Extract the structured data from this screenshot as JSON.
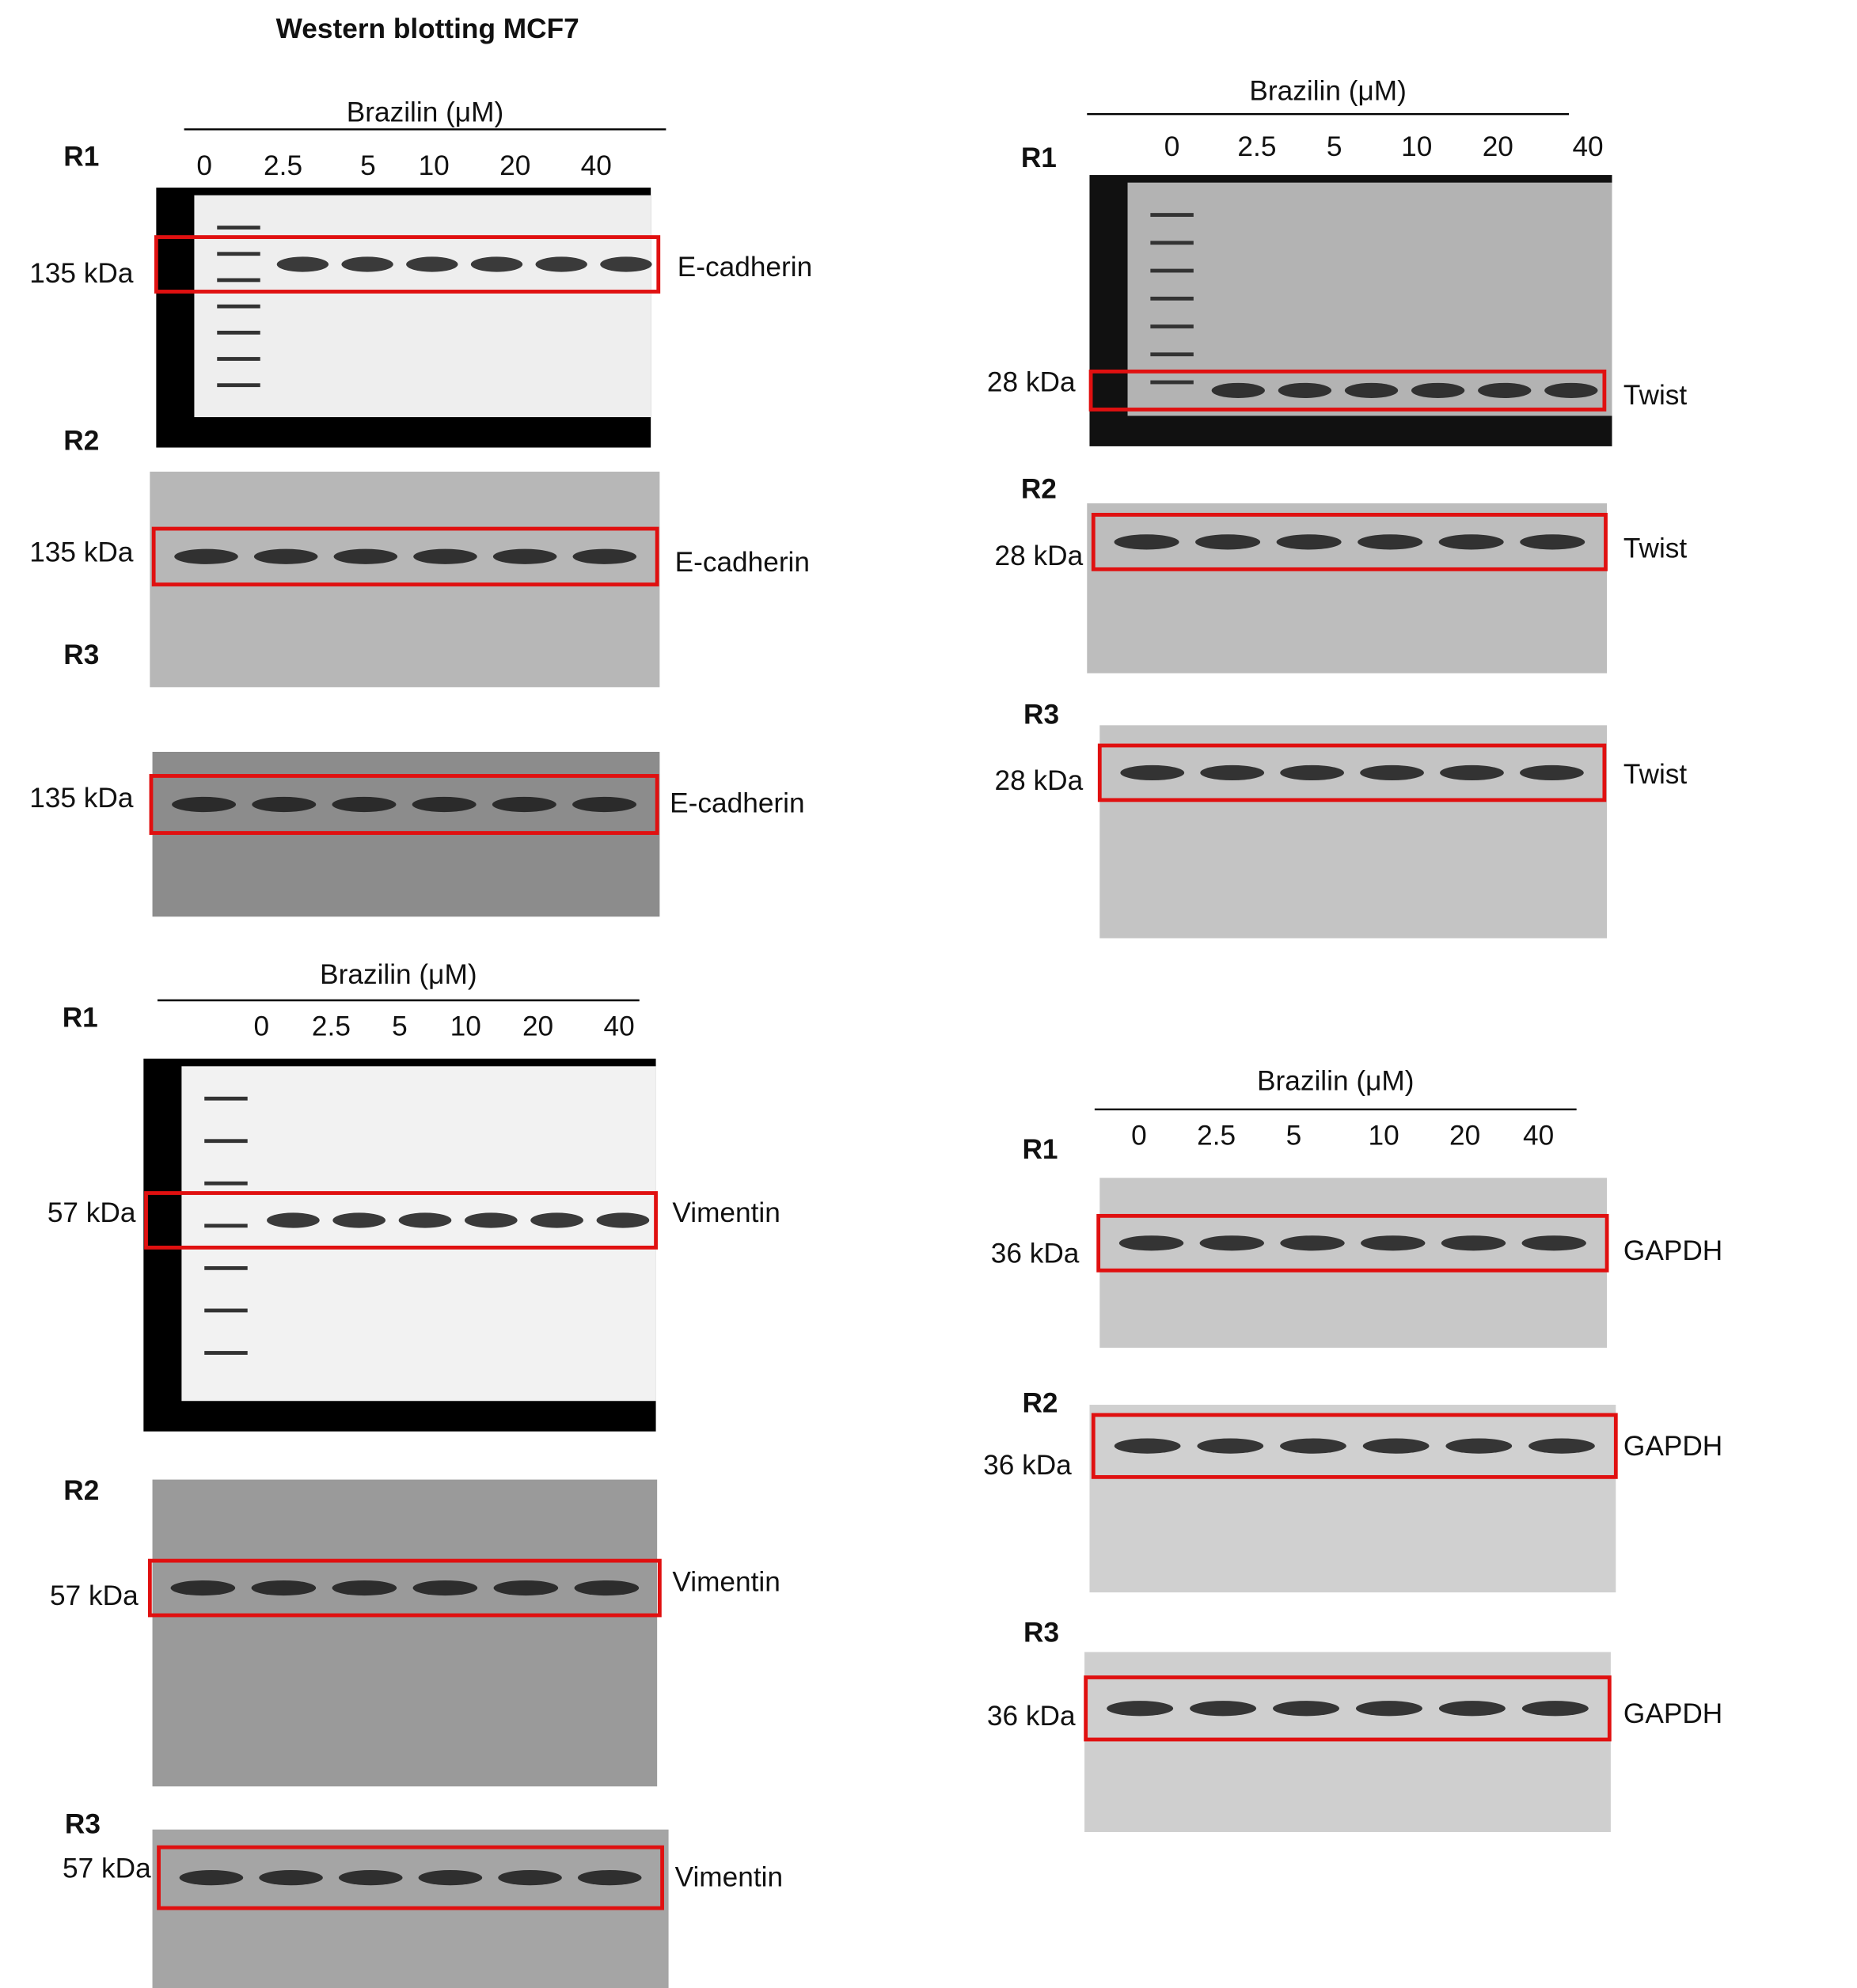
{
  "title": "Western blotting MCF7",
  "panels": [
    {
      "treatment": "Brazilin (μM)",
      "lanes": [
        "0",
        "2.5",
        "5",
        "10",
        "20",
        "40"
      ],
      "blots": [
        {
          "replicate": "R1",
          "marker": "135 kDa",
          "protein": "E-cadherin"
        },
        {
          "replicate": "R2",
          "marker": "135 kDa",
          "protein": "E-cadherin"
        },
        {
          "replicate": "R3",
          "marker": "135 kDa",
          "protein": "E-cadherin"
        }
      ]
    },
    {
      "treatment": "Brazilin (μM)",
      "lanes": [
        "0",
        "2.5",
        "5",
        "10",
        "20",
        "40"
      ],
      "blots": [
        {
          "replicate": "R1",
          "marker": "57 kDa",
          "protein": "Vimentin"
        },
        {
          "replicate": "R2",
          "marker": "57 kDa",
          "protein": "Vimentin"
        },
        {
          "replicate": "R3",
          "marker": "57 kDa",
          "protein": "Vimentin"
        }
      ]
    },
    {
      "treatment": "Brazilin (μM)",
      "lanes": [
        "0",
        "2.5",
        "5",
        "10",
        "20",
        "40"
      ],
      "blots": [
        {
          "replicate": "R1",
          "marker": "28 kDa",
          "protein": "Twist"
        },
        {
          "replicate": "R2",
          "marker": "28 kDa",
          "protein": "Twist"
        },
        {
          "replicate": "R3",
          "marker": "28 kDa",
          "protein": "Twist"
        }
      ]
    },
    {
      "treatment": "Brazilin (μM)",
      "lanes": [
        "0",
        "2.5",
        "5",
        "10",
        "20",
        "40"
      ],
      "blots": [
        {
          "replicate": "R1",
          "marker": "36 kDa",
          "protein": "GAPDH"
        },
        {
          "replicate": "R2",
          "marker": "36 kDa",
          "protein": "GAPDH"
        },
        {
          "replicate": "R3",
          "marker": "36 kDa",
          "protein": "GAPDH"
        }
      ]
    }
  ]
}
